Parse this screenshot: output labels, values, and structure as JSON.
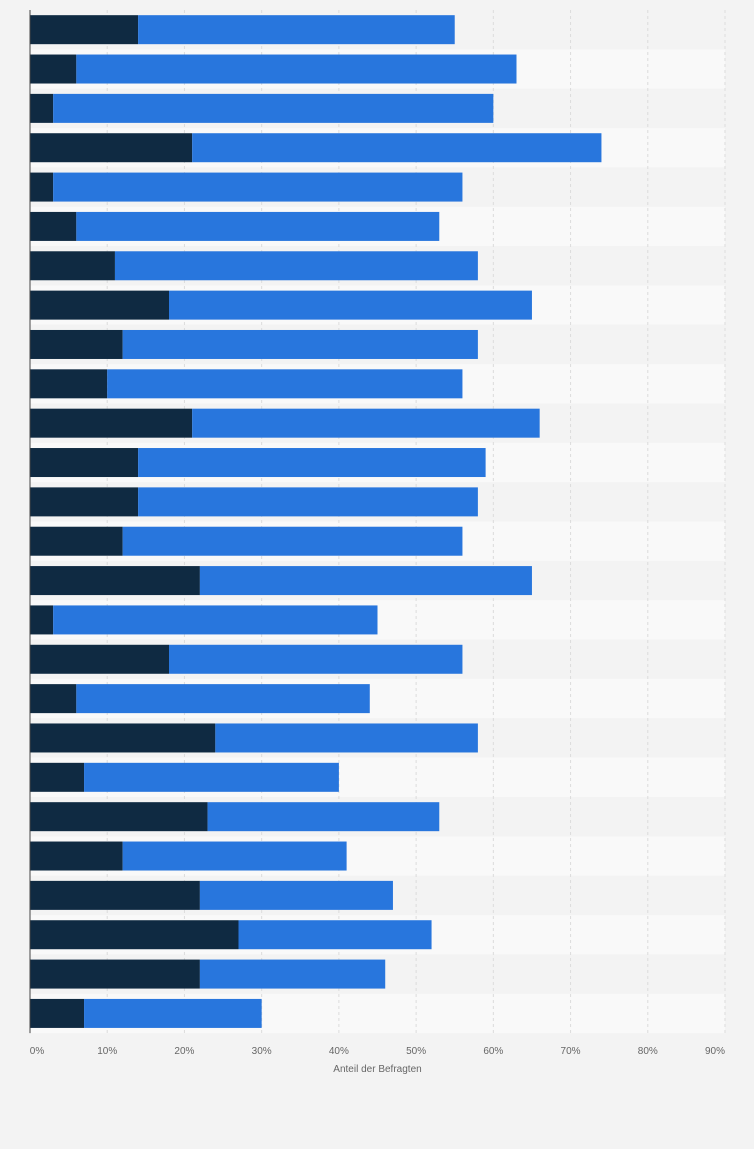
{
  "chart_data": {
    "type": "bar",
    "orientation": "horizontal",
    "stacked": true,
    "categories": [
      "",
      "",
      "",
      "",
      "",
      "",
      "",
      "",
      "",
      "",
      "",
      "",
      "",
      "",
      "",
      "",
      "",
      "",
      "",
      "",
      "",
      "",
      "",
      "",
      "",
      ""
    ],
    "series": [
      {
        "color": "#0f2a42",
        "values": [
          14,
          6,
          3,
          21,
          3,
          6,
          11,
          18,
          12,
          10,
          21,
          14,
          14,
          12,
          22,
          3,
          18,
          6,
          24,
          7,
          23,
          12,
          22,
          27,
          22,
          7
        ]
      },
      {
        "color": "#2876dd",
        "values": [
          41,
          57,
          57,
          53,
          53,
          47,
          47,
          47,
          46,
          46,
          45,
          45,
          44,
          44,
          43,
          42,
          38,
          38,
          34,
          33,
          30,
          29,
          25,
          25,
          24,
          23
        ]
      }
    ],
    "xlabel": "Anteil der Befragten",
    "xlim": [
      0,
      90
    ],
    "xticks": [
      0,
      10,
      20,
      30,
      40,
      50,
      60,
      70,
      80,
      90
    ],
    "xtick_labels": [
      "0%",
      "10%",
      "20%",
      "30%",
      "40%",
      "50%",
      "60%",
      "70%",
      "80%",
      "90%"
    ],
    "grid": true,
    "legend": "none"
  }
}
